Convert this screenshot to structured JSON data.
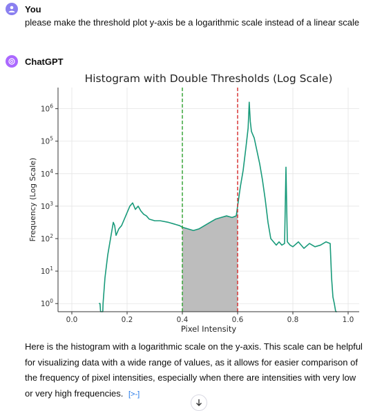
{
  "user": {
    "name": "You",
    "message": "please make the threshold plot y-axis be a logarithmic scale instead of a linear scale",
    "avatar_icon": "user-icon"
  },
  "assistant": {
    "name": "ChatGPT",
    "avatar_icon": "openai-logo-icon",
    "reply": "Here is the histogram with a logarithmic scale on the y-axis. This scale can be helpful for visualizing data with a wide range of values, as it allows for easier comparison of the frequency of pixel intensities, especially when there are intensities with very low or very high frequencies.",
    "source_link": "[>-]"
  },
  "chart_data": {
    "type": "line",
    "title": "Histogram with Double Thresholds (Log Scale)",
    "xlabel": "Pixel Intensity",
    "ylabel": "Frequency (Log Scale)",
    "xlim": [
      -0.05,
      1.04
    ],
    "ylim_log10": [
      -0.25,
      6.65
    ],
    "yscale": "log",
    "x_ticks": [
      0.0,
      0.2,
      0.4,
      0.6,
      0.8,
      1.0
    ],
    "x_tick_labels": [
      "0.0",
      "0.2",
      "0.4",
      "0.6",
      "0.8",
      "1.0"
    ],
    "y_ticks_log10": [
      0,
      1,
      2,
      3,
      4,
      5,
      6
    ],
    "y_tick_bases": [
      "10",
      "10",
      "10",
      "10",
      "10",
      "10",
      "10"
    ],
    "y_tick_exps": [
      "0",
      "1",
      "2",
      "3",
      "4",
      "5",
      "6"
    ],
    "grid": true,
    "thresholds": [
      {
        "value": 0.4,
        "color": "#2ca02c",
        "style": "dashed"
      },
      {
        "value": 0.6,
        "color": "#d62728",
        "style": "dashed"
      }
    ],
    "shaded_region": {
      "from": 0.4,
      "to": 0.6,
      "color": "#bdbdbd"
    },
    "series": [
      {
        "color": "#189a7a",
        "points": [
          [
            0.098,
            0
          ],
          [
            0.102,
            0
          ],
          [
            0.104,
            -0.25
          ],
          [
            0.112,
            -0.25
          ],
          [
            0.113,
            0
          ],
          [
            0.12,
            0.8
          ],
          [
            0.13,
            1.5
          ],
          [
            0.14,
            2.0
          ],
          [
            0.15,
            2.5
          ],
          [
            0.155,
            2.4
          ],
          [
            0.16,
            2.1
          ],
          [
            0.17,
            2.3
          ],
          [
            0.18,
            2.4
          ],
          [
            0.19,
            2.6
          ],
          [
            0.2,
            2.8
          ],
          [
            0.21,
            3.0
          ],
          [
            0.22,
            3.1
          ],
          [
            0.23,
            2.9
          ],
          [
            0.24,
            3.0
          ],
          [
            0.25,
            2.85
          ],
          [
            0.26,
            2.75
          ],
          [
            0.27,
            2.7
          ],
          [
            0.28,
            2.6
          ],
          [
            0.3,
            2.55
          ],
          [
            0.32,
            2.55
          ],
          [
            0.35,
            2.5
          ],
          [
            0.37,
            2.45
          ],
          [
            0.39,
            2.4
          ],
          [
            0.4,
            2.35
          ],
          [
            0.42,
            2.3
          ],
          [
            0.44,
            2.25
          ],
          [
            0.46,
            2.3
          ],
          [
            0.48,
            2.4
          ],
          [
            0.5,
            2.5
          ],
          [
            0.52,
            2.6
          ],
          [
            0.54,
            2.65
          ],
          [
            0.56,
            2.7
          ],
          [
            0.58,
            2.65
          ],
          [
            0.595,
            2.7
          ],
          [
            0.6,
            3.0
          ],
          [
            0.61,
            3.6
          ],
          [
            0.62,
            4.1
          ],
          [
            0.63,
            4.8
          ],
          [
            0.638,
            5.4
          ],
          [
            0.642,
            6.2
          ],
          [
            0.646,
            5.6
          ],
          [
            0.65,
            5.3
          ],
          [
            0.66,
            5.1
          ],
          [
            0.67,
            4.7
          ],
          [
            0.68,
            4.3
          ],
          [
            0.69,
            3.8
          ],
          [
            0.7,
            3.2
          ],
          [
            0.71,
            2.5
          ],
          [
            0.72,
            2.0
          ],
          [
            0.73,
            1.9
          ],
          [
            0.74,
            1.8
          ],
          [
            0.75,
            1.9
          ],
          [
            0.76,
            1.8
          ],
          [
            0.77,
            1.85
          ],
          [
            0.775,
            4.2
          ],
          [
            0.78,
            1.9
          ],
          [
            0.79,
            1.8
          ],
          [
            0.8,
            1.75
          ],
          [
            0.82,
            1.9
          ],
          [
            0.84,
            1.7
          ],
          [
            0.86,
            1.85
          ],
          [
            0.88,
            1.75
          ],
          [
            0.9,
            1.8
          ],
          [
            0.92,
            1.9
          ],
          [
            0.935,
            1.85
          ],
          [
            0.94,
            0.8
          ],
          [
            0.945,
            0.2
          ],
          [
            0.95,
            0
          ],
          [
            0.955,
            -0.25
          ],
          [
            0.96,
            -0.25
          ]
        ]
      }
    ]
  }
}
